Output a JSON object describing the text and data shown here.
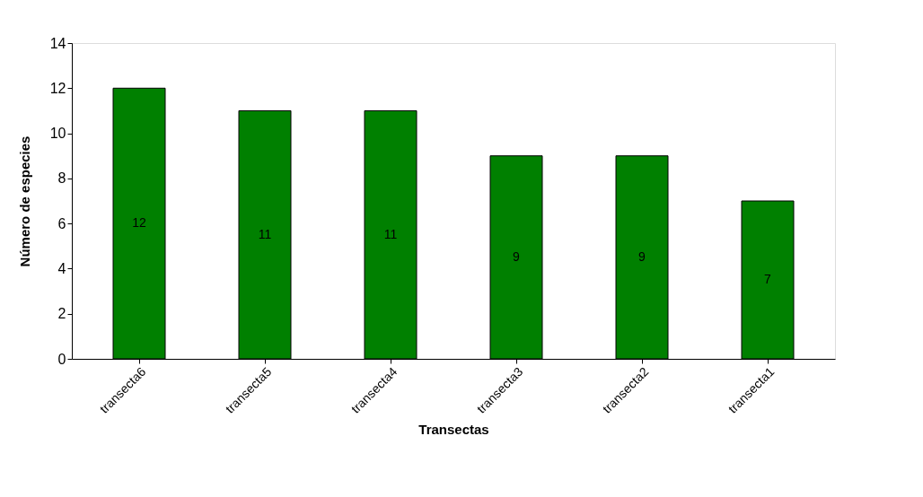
{
  "chart_data": {
    "type": "bar",
    "xlabel": "Transectas",
    "ylabel": "Número de especies",
    "categories": [
      "transecta6",
      "transecta5",
      "transecta4",
      "transecta3",
      "transecta2",
      "transecta1"
    ],
    "values": [
      12,
      11,
      11,
      9,
      9,
      7
    ],
    "color": "#008000",
    "ylim": [
      0,
      14
    ],
    "yticks": [
      0,
      2,
      4,
      6,
      8,
      10,
      12,
      14
    ],
    "grid": false,
    "data_labels": true
  }
}
